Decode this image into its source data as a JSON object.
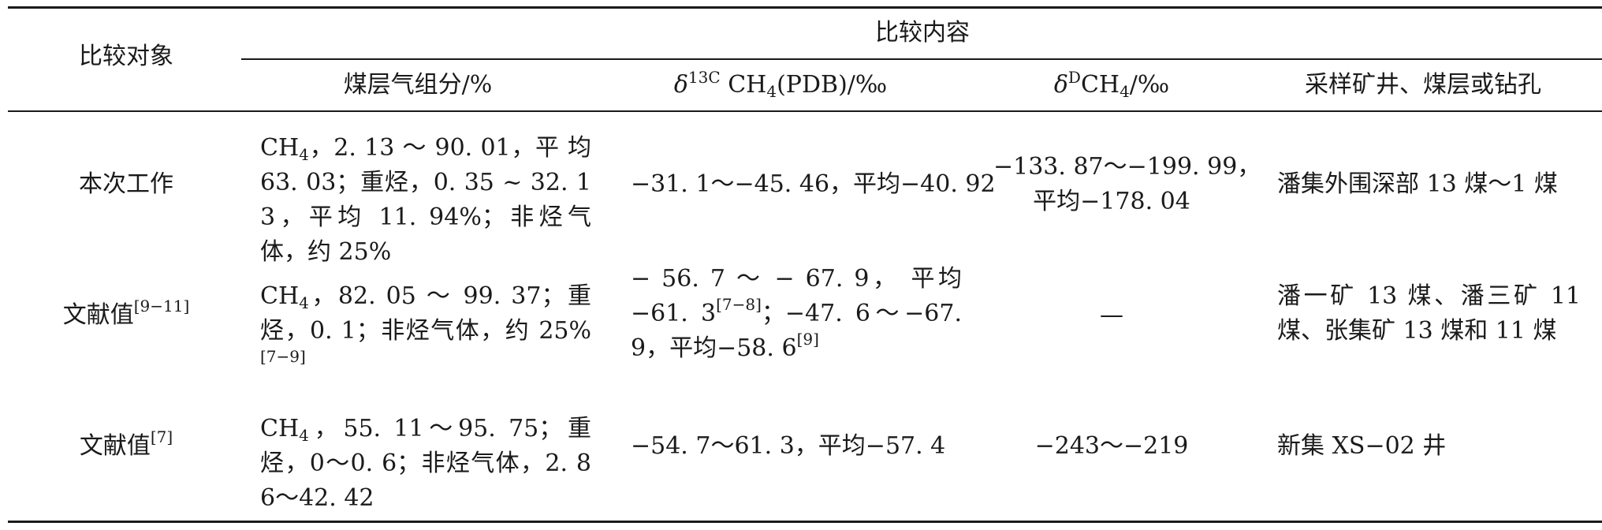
{
  "header": {
    "compare_object": "比较对象",
    "compare_content": "比较内容",
    "col_gas": "煤层气组分/%",
    "col_c13_delta": "δ",
    "col_c13_sup": "13C",
    "col_c13_rest_a": " CH",
    "col_c13_sub": "4",
    "col_c13_rest_b": "(PDB)/‰",
    "col_d_delta": "δ",
    "col_d_sup": "D",
    "col_d_rest_a": "CH",
    "col_d_sub": "4",
    "col_d_rest_b": "/‰",
    "col_sample": "采样矿井、煤层或钻孔"
  },
  "rows": [
    {
      "object": "本次工作",
      "object_ref": "",
      "gas_ch": "CH",
      "gas_sub": "4",
      "gas_text": "，2. 13 ～ 90. 01，平 均 63. 03；重烃，0. 35 ~ 32. 13，平均 11. 94%；非烃气体，约 25%",
      "gas_ref": "",
      "c13_text_1": "−31. 1～−45. 46，平均−40. 92",
      "c13_ref_1": "",
      "c13_text_2": "",
      "c13_ref_2": "",
      "d_text_1": "−133. 87～−199. 99，",
      "d_text_2": "平均−178. 04",
      "sample": "潘集外围深部 13 煤～1 煤"
    },
    {
      "object": "文献值",
      "object_ref": "[9−11]",
      "gas_ch": "CH",
      "gas_sub": "4",
      "gas_text": "，82. 05 ～ 99. 37；重 烃，0. 1；非烃气体，约 25%",
      "gas_ref": "[7−9]",
      "c13_text_1": "− 56. 7 ～ − 67. 9， 平均 −61. 3",
      "c13_ref_1": "[7−8]",
      "c13_text_2": "；−47. 6～−67. 9，平均−58. 6",
      "c13_ref_2": "[9]",
      "d_text_1": "—",
      "d_text_2": "",
      "sample": "潘一矿 13 煤、潘三矿 11 煤、张集矿 13 煤和 11 煤"
    },
    {
      "object": "文献值",
      "object_ref": "[7]",
      "gas_ch": "CH",
      "gas_sub": "4",
      "gas_text": "，55. 11～95. 75；重烃，0～0. 6；非烃气体，2. 86～42. 42",
      "gas_ref": "",
      "c13_text_1": "−54. 7～61. 3，平均−57. 4",
      "c13_ref_1": "",
      "c13_text_2": "",
      "c13_ref_2": "",
      "d_text_1": "−243～−219",
      "d_text_2": "",
      "sample": "新集 XS−02 井"
    }
  ]
}
